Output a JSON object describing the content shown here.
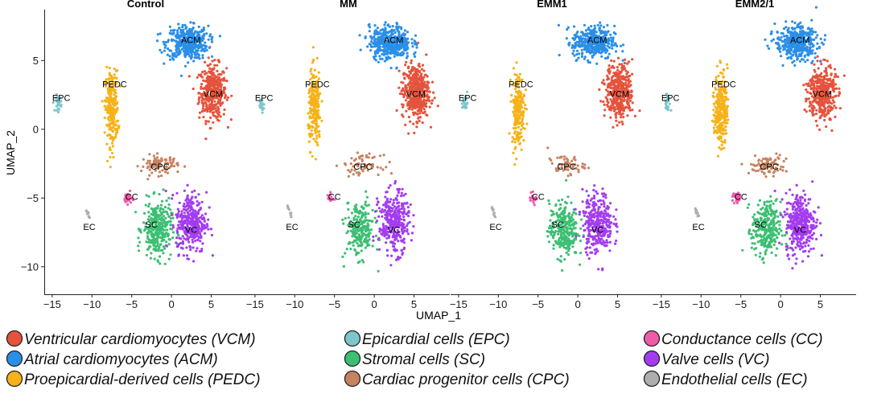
{
  "chart_data": {
    "type": "scatter",
    "xlabel": "UMAP_1",
    "ylabel": "UMAP_2",
    "xlim": [
      -16,
      9.5
    ],
    "ylim": [
      -12,
      8.7
    ],
    "x_ticks": [
      -15,
      -10,
      -5,
      0,
      5
    ],
    "x_tick_labels": [
      "−15",
      "−10",
      "−5",
      "0",
      "5"
    ],
    "y_ticks": [
      5,
      0,
      -5,
      -10
    ],
    "y_tick_labels": [
      "5",
      "0",
      "−5",
      "−10"
    ],
    "panels": [
      {
        "title": "Control",
        "scale": {
          "ACM": 1.0,
          "VCM": 1.0,
          "PEDC": 1.0,
          "EPC": 1.0,
          "CPC": 1.0,
          "CC": 1.0,
          "SC": 1.1,
          "VC": 1.0,
          "EC": 1.0
        }
      },
      {
        "title": "MM",
        "scale": {
          "ACM": 1.0,
          "VCM": 1.15,
          "PEDC": 0.85,
          "EPC": 0.9,
          "CPC": 0.7,
          "CC": 0.3,
          "SC": 0.8,
          "VC": 1.0,
          "EC": 0.8
        }
      },
      {
        "title": "EMM1",
        "scale": {
          "ACM": 0.9,
          "VCM": 1.0,
          "PEDC": 0.8,
          "EPC": 1.0,
          "CPC": 0.6,
          "CC": 0.5,
          "SC": 1.0,
          "VC": 1.0,
          "EC": 0.8
        }
      },
      {
        "title": "EMM2/1",
        "scale": {
          "ACM": 1.0,
          "VCM": 1.0,
          "PEDC": 1.0,
          "EPC": 1.0,
          "CPC": 1.0,
          "CC": 1.0,
          "SC": 1.0,
          "VC": 1.1,
          "EC": 1.0
        }
      }
    ],
    "clusters": [
      {
        "key": "VCM",
        "label": "VCM",
        "color": "#E5533C",
        "center": [
          5.2,
          2.7
        ],
        "spread": [
          1.7,
          2.0
        ],
        "count": 380,
        "label_pos": [
          4.0,
          2.6
        ]
      },
      {
        "key": "ACM",
        "label": "ACM",
        "color": "#2B8FE8",
        "center": [
          2.0,
          6.3
        ],
        "spread": [
          2.6,
          1.2
        ],
        "count": 420,
        "label_pos": [
          1.2,
          6.5
        ]
      },
      {
        "key": "PEDC",
        "label": "PEDC",
        "color": "#F6B218",
        "center": [
          -7.5,
          1.5
        ],
        "spread": [
          0.8,
          2.7
        ],
        "count": 260,
        "label_pos": [
          -8.7,
          3.3
        ]
      },
      {
        "key": "EPC",
        "label": "EPC",
        "color": "#7CC6CC",
        "center": [
          -14.2,
          1.9
        ],
        "spread": [
          0.25,
          0.5
        ],
        "count": 25,
        "label_pos": [
          -15.0,
          2.3
        ]
      },
      {
        "key": "CPC",
        "label": "CPC",
        "color": "#C7825E",
        "center": [
          -1.5,
          -2.6
        ],
        "spread": [
          2.3,
          0.7
        ],
        "count": 90,
        "label_pos": [
          -2.6,
          -2.7
        ]
      },
      {
        "key": "CC",
        "label": "CC",
        "color": "#F05BA9",
        "center": [
          -5.5,
          -5.0
        ],
        "spread": [
          0.5,
          0.4
        ],
        "count": 35,
        "label_pos": [
          -5.8,
          -4.9
        ]
      },
      {
        "key": "SC",
        "label": "SC",
        "color": "#3CBF73",
        "center": [
          -1.8,
          -7.3
        ],
        "spread": [
          1.8,
          2.0
        ],
        "count": 280,
        "label_pos": [
          -3.3,
          -6.9
        ]
      },
      {
        "key": "VC",
        "label": "VC",
        "color": "#A33CF0",
        "center": [
          2.5,
          -6.8
        ],
        "spread": [
          1.9,
          2.2
        ],
        "count": 330,
        "label_pos": [
          1.7,
          -7.3
        ]
      },
      {
        "key": "EC",
        "label": "EC",
        "color": "#AEAEAE",
        "center": [
          -10.6,
          -6.0
        ],
        "spread": [
          0.25,
          0.35
        ],
        "count": 12,
        "label_pos": [
          -11.1,
          -7.1
        ]
      }
    ],
    "legend": {
      "placement": "bottom",
      "columns": [
        [
          {
            "label": "Ventricular cardiomyocytes (VCM)",
            "color": "#E5533C"
          },
          {
            "label": "Atrial cardiomyocytes (ACM)",
            "color": "#2B8FE8"
          },
          {
            "label": "Proepicardial-derived cells (PEDC)",
            "color": "#F6B218"
          }
        ],
        [
          {
            "label": "Epicardial cells (EPC)",
            "color": "#7CC6CC"
          },
          {
            "label": "Stromal cells (SC)",
            "color": "#3CBF73"
          },
          {
            "label": "Cardiac progenitor cells (CPC)",
            "color": "#C7825E"
          }
        ],
        [
          {
            "label": "Conductance cells (CC)",
            "color": "#F05BA9"
          },
          {
            "label": "Valve cells (VC)",
            "color": "#A33CF0"
          },
          {
            "label": "Endothelial cells (EC)",
            "color": "#AEAEAE"
          }
        ]
      ]
    }
  }
}
